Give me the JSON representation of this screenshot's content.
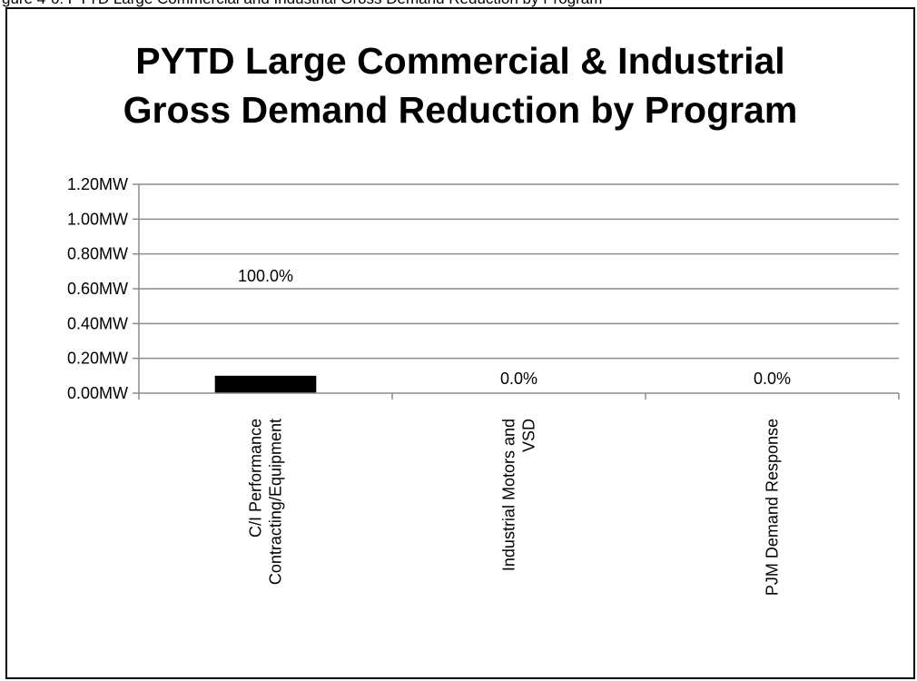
{
  "caption": "gure 4-6: PYTD Large Commercial and Industrial Gross Demand Reduction by Program",
  "chart_data": {
    "type": "bar",
    "title_lines": [
      "PYTD Large Commercial & Industrial",
      "Gross Demand Reduction by Program"
    ],
    "xlabel": "",
    "ylabel": "",
    "ylim": [
      0,
      1.2
    ],
    "yticks": [
      0,
      0.2,
      0.4,
      0.6,
      0.8,
      1.0,
      1.2
    ],
    "ytick_labels": [
      "0.00MW",
      "0.20MW",
      "0.40MW",
      "0.60MW",
      "0.80MW",
      "1.00MW",
      "1.20MW"
    ],
    "categories": [
      [
        "C/I Performance",
        "Contracting/Equipment"
      ],
      [
        "Industrial Motors and",
        "VSD"
      ],
      [
        "PJM Demand Response"
      ]
    ],
    "values": [
      0.1,
      0.0,
      0.0
    ],
    "data_labels": [
      "100.0%",
      "0.0%",
      "0.0%"
    ],
    "grid": true,
    "legend": "none",
    "bar_color": "#000000"
  }
}
